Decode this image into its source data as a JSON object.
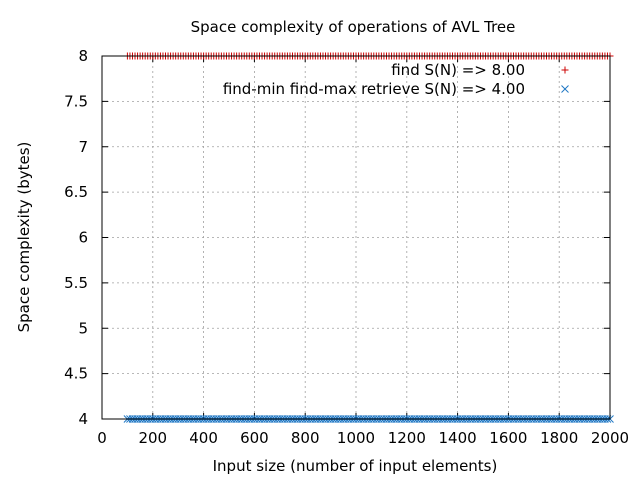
{
  "chart_data": {
    "type": "scatter",
    "title": "Space complexity of operations of AVL Tree",
    "xlabel": "Input size (number of input elements)",
    "ylabel": "Space complexity (bytes)",
    "xlim": [
      0,
      2000
    ],
    "ylim": [
      4,
      8
    ],
    "x_ticks": [
      0,
      200,
      400,
      600,
      800,
      1000,
      1200,
      1400,
      1600,
      1800,
      2000
    ],
    "y_ticks": [
      4,
      4.5,
      5,
      5.5,
      6,
      6.5,
      7,
      7.5,
      8
    ],
    "y_tick_labels": [
      "4",
      "4.5",
      "5",
      "5.5",
      "6",
      "6.5",
      "7",
      "7.5",
      "8"
    ],
    "grid": true,
    "legend_position": "top-right",
    "series": [
      {
        "name": "find S(N) => 8.00",
        "marker": "plus",
        "color": "#cc0000",
        "x_start": 100,
        "x_end": 2000,
        "x_step": 10,
        "y_constant": 8.0
      },
      {
        "name": "find-min find-max retrieve S(N) => 4.00",
        "marker": "cross",
        "color": "#1f77c4",
        "x_start": 100,
        "x_end": 2000,
        "x_step": 10,
        "y_constant": 4.0
      }
    ]
  }
}
